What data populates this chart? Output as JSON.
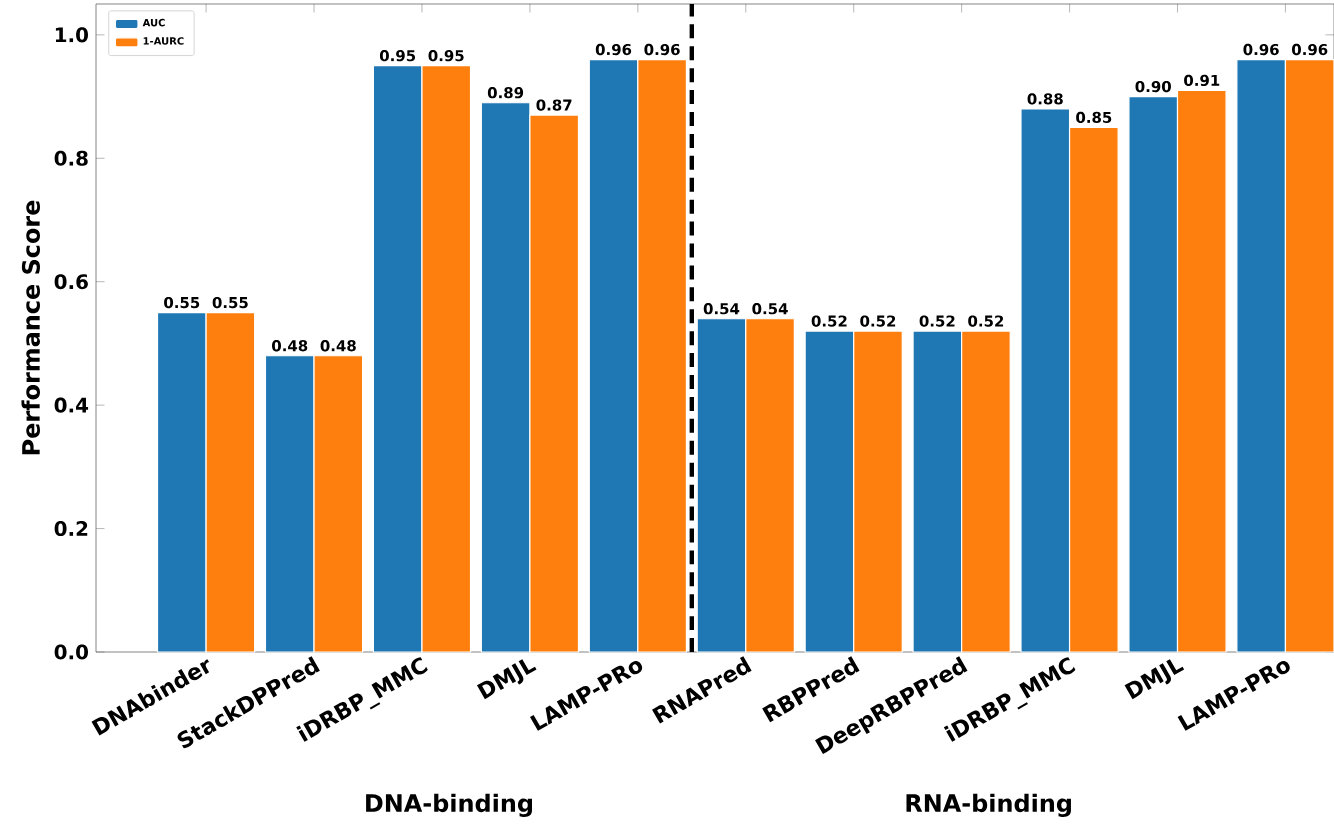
{
  "chart_data": {
    "type": "bar",
    "ylabel": "Performance Score",
    "categories": [
      "DNAbinder",
      "StackDPPred",
      "iDRBP_MMC",
      "DMJL",
      "LAMP-PRo",
      "RNAPred",
      "RBPPred",
      "DeepRBPPred",
      "iDRBP_MMC",
      "DMJL",
      "LAMP-PRo"
    ],
    "series": [
      {
        "name": "AUC",
        "color": "#1f77b4",
        "values": [
          0.55,
          0.48,
          0.95,
          0.89,
          0.96,
          0.54,
          0.52,
          0.52,
          0.88,
          0.9,
          0.96
        ],
        "value_labels": [
          "0.55",
          "0.48",
          "0.95",
          "0.89",
          "0.96",
          "0.54",
          "0.52",
          "0.52",
          "0.88",
          "0.90",
          "0.96"
        ]
      },
      {
        "name": "1-AURC",
        "color": "#ff7f0e",
        "values": [
          0.55,
          0.48,
          0.95,
          0.87,
          0.96,
          0.54,
          0.52,
          0.52,
          0.85,
          0.91,
          0.96
        ],
        "value_labels": [
          "0.55",
          "0.48",
          "0.95",
          "0.87",
          "0.96",
          "0.54",
          "0.52",
          "0.52",
          "0.85",
          "0.91",
          "0.96"
        ]
      }
    ],
    "ylim": [
      0,
      1.05
    ],
    "yticks": [
      {
        "value": 0,
        "label": "0.0"
      },
      {
        "value": 0.2,
        "label": "0.2"
      },
      {
        "value": 0.4,
        "label": "0.4"
      },
      {
        "value": 0.6,
        "label": "0.6"
      },
      {
        "value": 0.8,
        "label": "0.8"
      },
      {
        "value": 1.0,
        "label": "1.0"
      }
    ],
    "annotations": [
      "DNA-binding",
      "RNA-binding"
    ],
    "legend": "top left",
    "grid": false
  }
}
